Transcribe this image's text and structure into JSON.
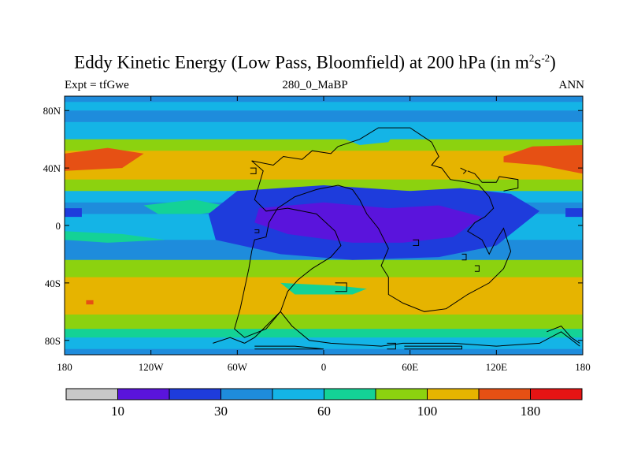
{
  "chart_data": {
    "type": "heatmap",
    "title_main": "Eddy Kinetic Energy (Low Pass, Bloomfield) at 200 hPa (in m",
    "title_sup1": "2",
    "title_mid": "s",
    "title_sup2": "-2",
    "title_end": ")",
    "subtitle_left": "Expt = tfGwe",
    "subtitle_center": "280_0_MaBP",
    "subtitle_right": "ANN",
    "x_ticks": [
      {
        "value": -180,
        "label": "180"
      },
      {
        "value": -120,
        "label": "120W"
      },
      {
        "value": -60,
        "label": "60W"
      },
      {
        "value": 0,
        "label": "0"
      },
      {
        "value": 60,
        "label": "60E"
      },
      {
        "value": 120,
        "label": "120E"
      },
      {
        "value": 180,
        "label": "180"
      }
    ],
    "y_ticks": [
      {
        "value": 80,
        "label": "80N"
      },
      {
        "value": 40,
        "label": "40N"
      },
      {
        "value": 0,
        "label": "0"
      },
      {
        "value": -40,
        "label": "40S"
      },
      {
        "value": -80,
        "label": "80S"
      }
    ],
    "xlim": [
      -180,
      180
    ],
    "ylim": [
      -90,
      90
    ],
    "colorbar": {
      "colors": [
        "#c8c8c8",
        "#5a14dc",
        "#1e3cdc",
        "#1e8cdc",
        "#14b4e6",
        "#14d296",
        "#8cd20f",
        "#e6b400",
        "#e65014",
        "#e61414"
      ],
      "labels": [
        {
          "after_box": 1,
          "label": "10"
        },
        {
          "after_box": 3,
          "label": "30"
        },
        {
          "after_box": 5,
          "label": "60"
        },
        {
          "after_box": 7,
          "label": "100"
        },
        {
          "after_box": 9,
          "label": "180"
        }
      ]
    },
    "latitude_bands": [
      {
        "lat_top": 90,
        "lat_bottom": 86,
        "color": "#1e8cdc"
      },
      {
        "lat_top": 86,
        "lat_bottom": 80,
        "color": "#14b4e6"
      },
      {
        "lat_top": 80,
        "lat_bottom": 72,
        "color": "#1e8cdc"
      },
      {
        "lat_top": 72,
        "lat_bottom": 60,
        "color": "#14b4e6"
      },
      {
        "lat_top": 60,
        "lat_bottom": 52,
        "color": "#8cd20f"
      },
      {
        "lat_top": 52,
        "lat_bottom": 32,
        "color": "#e6b400"
      },
      {
        "lat_top": 32,
        "lat_bottom": 24,
        "color": "#8cd20f"
      },
      {
        "lat_top": 24,
        "lat_bottom": 16,
        "color": "#14b4e6"
      },
      {
        "lat_top": 16,
        "lat_bottom": 8,
        "color": "#1e8cdc"
      },
      {
        "lat_top": 8,
        "lat_bottom": -10,
        "color": "#14b4e6"
      },
      {
        "lat_top": -10,
        "lat_bottom": -24,
        "color": "#1e8cdc"
      },
      {
        "lat_top": -24,
        "lat_bottom": -36,
        "color": "#8cd20f"
      },
      {
        "lat_top": -36,
        "lat_bottom": -62,
        "color": "#e6b400"
      },
      {
        "lat_top": -62,
        "lat_bottom": -72,
        "color": "#8cd20f"
      },
      {
        "lat_top": -72,
        "lat_bottom": -78,
        "color": "#14d296"
      },
      {
        "lat_top": -78,
        "lat_bottom": -86,
        "color": "#14b4e6"
      },
      {
        "lat_top": -86,
        "lat_bottom": -90,
        "color": "#1e8cdc"
      }
    ],
    "regions": [
      {
        "color": "#e65014",
        "points": [
          [
            -180,
            50
          ],
          [
            -150,
            54
          ],
          [
            -125,
            50
          ],
          [
            -140,
            40
          ],
          [
            -180,
            38
          ]
        ]
      },
      {
        "color": "#e65014",
        "points": [
          [
            125,
            48
          ],
          [
            145,
            55
          ],
          [
            180,
            56
          ],
          [
            180,
            36
          ],
          [
            150,
            42
          ],
          [
            125,
            44
          ]
        ]
      },
      {
        "color": "#14b4e6",
        "points": [
          [
            15,
            68
          ],
          [
            30,
            64
          ],
          [
            50,
            66
          ],
          [
            45,
            58
          ],
          [
            25,
            56
          ],
          [
            15,
            60
          ]
        ]
      },
      {
        "color": "#14d296",
        "points": [
          [
            -125,
            14
          ],
          [
            -90,
            18
          ],
          [
            -60,
            12
          ],
          [
            -85,
            8
          ],
          [
            -115,
            8
          ]
        ]
      },
      {
        "color": "#14d296",
        "points": [
          [
            95,
            14
          ],
          [
            120,
            16
          ],
          [
            135,
            10
          ],
          [
            115,
            6
          ],
          [
            95,
            8
          ]
        ]
      },
      {
        "color": "#14d296",
        "points": [
          [
            -180,
            -10
          ],
          [
            -150,
            -12
          ],
          [
            -110,
            -10
          ],
          [
            -140,
            -6
          ],
          [
            -180,
            -4
          ]
        ]
      },
      {
        "color": "#14d296",
        "points": [
          [
            -30,
            -40
          ],
          [
            10,
            -42
          ],
          [
            30,
            -44
          ],
          [
            20,
            -48
          ],
          [
            -20,
            -48
          ]
        ]
      },
      {
        "color": "#5a14dc",
        "points": [
          [
            -50,
            16
          ],
          [
            0,
            20
          ],
          [
            50,
            16
          ],
          [
            90,
            18
          ],
          [
            120,
            10
          ],
          [
            100,
            -12
          ],
          [
            60,
            -16
          ],
          [
            20,
            -16
          ],
          [
            -30,
            -10
          ],
          [
            -55,
            2
          ]
        ]
      },
      {
        "color": "#1e3cdc",
        "points": [
          [
            -60,
            24
          ],
          [
            0,
            28
          ],
          [
            60,
            24
          ],
          [
            95,
            26
          ],
          [
            130,
            22
          ],
          [
            150,
            10
          ],
          [
            120,
            -14
          ],
          [
            80,
            -22
          ],
          [
            20,
            -24
          ],
          [
            -30,
            -20
          ],
          [
            -75,
            -10
          ],
          [
            -80,
            8
          ]
        ]
      },
      {
        "color": "#5a14dc",
        "points": [
          [
            -45,
            12
          ],
          [
            0,
            16
          ],
          [
            45,
            12
          ],
          [
            80,
            14
          ],
          [
            110,
            6
          ],
          [
            90,
            -8
          ],
          [
            55,
            -12
          ],
          [
            20,
            -12
          ],
          [
            -25,
            -6
          ],
          [
            -48,
            2
          ]
        ]
      },
      {
        "color": "#1e3cdc",
        "points": [
          [
            -180,
            12
          ],
          [
            -168,
            12
          ],
          [
            -168,
            6
          ],
          [
            -180,
            6
          ]
        ]
      },
      {
        "color": "#1e3cdc",
        "points": [
          [
            168,
            12
          ],
          [
            180,
            12
          ],
          [
            180,
            6
          ],
          [
            168,
            6
          ]
        ]
      },
      {
        "color": "#e65014",
        "points": [
          [
            -165,
            -52
          ],
          [
            -160,
            -52
          ],
          [
            -160,
            -55
          ],
          [
            -165,
            -55
          ]
        ]
      }
    ],
    "coastline_paths": [
      [
        [
          -50,
          45
        ],
        [
          -35,
          42
        ],
        [
          -28,
          48
        ],
        [
          -15,
          46
        ],
        [
          -8,
          52
        ],
        [
          5,
          50
        ],
        [
          10,
          55
        ],
        [
          25,
          60
        ],
        [
          38,
          68
        ],
        [
          60,
          68
        ],
        [
          75,
          58
        ],
        [
          80,
          48
        ],
        [
          75,
          42
        ],
        [
          82,
          40
        ],
        [
          88,
          32
        ],
        [
          100,
          30
        ],
        [
          108,
          28
        ],
        [
          115,
          20
        ],
        [
          118,
          12
        ],
        [
          112,
          6
        ],
        [
          105,
          2
        ],
        [
          100,
          -4
        ],
        [
          110,
          -10
        ],
        [
          115,
          -20
        ],
        [
          120,
          -10
        ],
        [
          125,
          -2
        ],
        [
          130,
          -18
        ],
        [
          125,
          -30
        ],
        [
          115,
          -40
        ],
        [
          100,
          -48
        ],
        [
          85,
          -58
        ],
        [
          70,
          -60
        ],
        [
          55,
          -54
        ],
        [
          45,
          -48
        ],
        [
          45,
          -36
        ],
        [
          40,
          -28
        ],
        [
          45,
          -16
        ],
        [
          38,
          -2
        ],
        [
          30,
          8
        ],
        [
          25,
          18
        ],
        [
          20,
          25
        ],
        [
          10,
          28
        ],
        [
          -5,
          25
        ],
        [
          -20,
          20
        ],
        [
          -32,
          12
        ],
        [
          -38,
          2
        ],
        [
          -40,
          -8
        ],
        [
          -48,
          -10
        ],
        [
          -50,
          -18
        ],
        [
          -52,
          -30
        ],
        [
          -55,
          -44
        ],
        [
          -58,
          -58
        ],
        [
          -62,
          -72
        ],
        [
          -55,
          -78
        ],
        [
          -40,
          -72
        ],
        [
          -30,
          -60
        ],
        [
          -25,
          -46
        ],
        [
          -18,
          -38
        ],
        [
          -8,
          -30
        ],
        [
          5,
          -22
        ],
        [
          12,
          -14
        ],
        [
          8,
          -4
        ],
        [
          -5,
          8
        ],
        [
          -25,
          12
        ],
        [
          -40,
          10
        ],
        [
          -48,
          18
        ],
        [
          -45,
          28
        ],
        [
          -42,
          38
        ],
        [
          -50,
          45
        ]
      ],
      [
        [
          -55,
          -82
        ],
        [
          -48,
          -78
        ],
        [
          -40,
          -70
        ],
        [
          -30,
          -60
        ],
        [
          -22,
          -70
        ],
        [
          -10,
          -80
        ],
        [
          5,
          -82
        ],
        [
          40,
          -84
        ],
        [
          55,
          -82
        ],
        [
          90,
          -82
        ],
        [
          120,
          -84
        ],
        [
          150,
          -82
        ],
        [
          165,
          -74
        ],
        [
          178,
          -84
        ]
      ],
      [
        [
          -77,
          -82
        ],
        [
          -65,
          -78
        ],
        [
          -55,
          -82
        ]
      ],
      [
        [
          -48,
          -86
        ],
        [
          0,
          -86
        ],
        [
          -20,
          -84
        ],
        [
          -48,
          -84
        ]
      ],
      [
        [
          44,
          -86
        ],
        [
          50,
          -86
        ],
        [
          50,
          -82
        ],
        [
          44,
          -82
        ]
      ],
      [
        [
          56,
          -86
        ],
        [
          96,
          -86
        ],
        [
          96,
          -84
        ],
        [
          56,
          -84
        ]
      ],
      [
        [
          -48,
          -3
        ],
        [
          -45,
          -3
        ],
        [
          -45,
          -5
        ],
        [
          -48,
          -5
        ]
      ],
      [
        [
          62,
          -10
        ],
        [
          66,
          -10
        ],
        [
          66,
          -14
        ],
        [
          62,
          -14
        ]
      ],
      [
        [
          -51,
          40
        ],
        [
          -47,
          40
        ],
        [
          -47,
          36
        ],
        [
          -51,
          36
        ]
      ],
      [
        [
          96,
          -20
        ],
        [
          99,
          -20
        ],
        [
          99,
          -24
        ],
        [
          96,
          -24
        ]
      ],
      [
        [
          105,
          -28
        ],
        [
          108,
          -28
        ],
        [
          108,
          -32
        ],
        [
          105,
          -32
        ]
      ],
      [
        [
          8,
          -40
        ],
        [
          16,
          -40
        ],
        [
          16,
          -46
        ],
        [
          8,
          -46
        ]
      ],
      [
        [
          100,
          38
        ],
        [
          105,
          36
        ],
        [
          110,
          30
        ],
        [
          120,
          30
        ],
        [
          122,
          34
        ],
        [
          135,
          32
        ],
        [
          135,
          26
        ],
        [
          125,
          24
        ]
      ],
      [
        [
          95,
          40
        ],
        [
          99,
          38
        ],
        [
          97,
          36
        ]
      ],
      [
        [
          155,
          -74
        ],
        [
          165,
          -70
        ],
        [
          172,
          -78
        ],
        [
          178,
          -82
        ]
      ]
    ]
  }
}
